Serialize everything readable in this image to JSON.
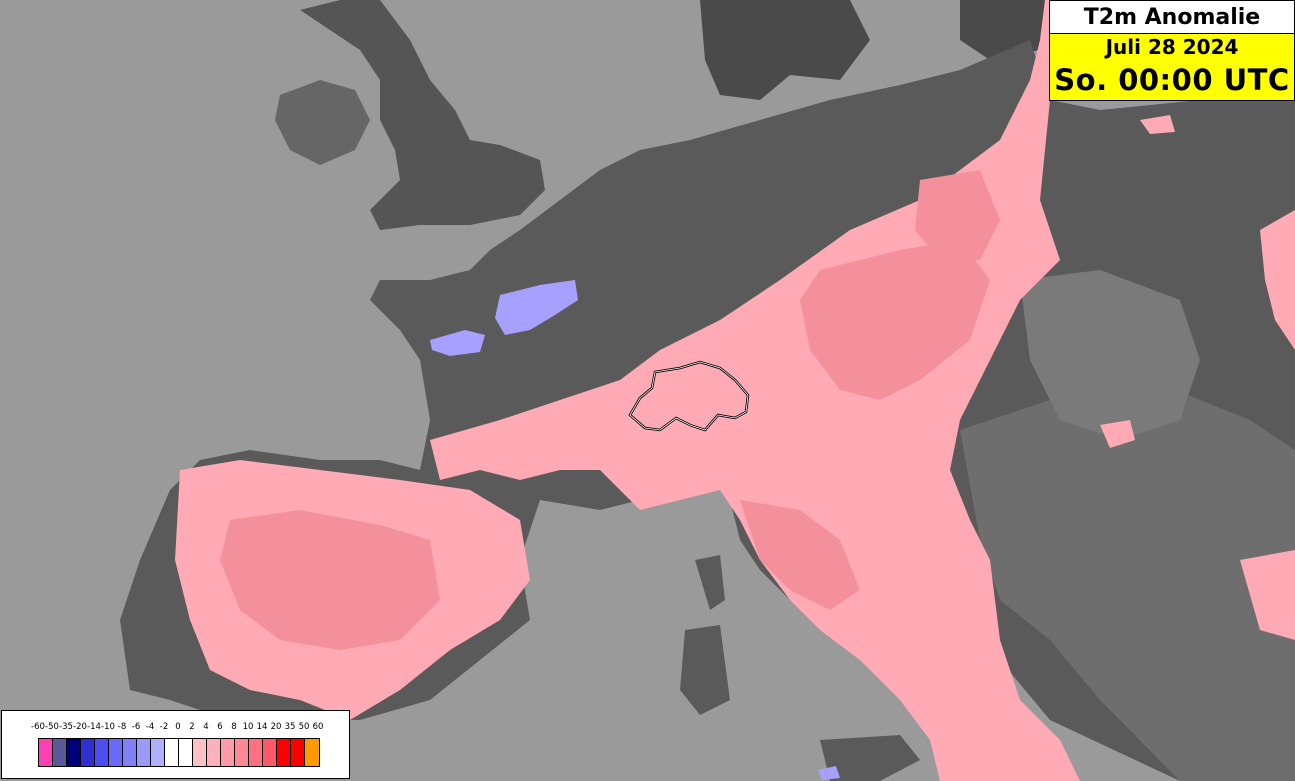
{
  "header": {
    "title": "T2m Anomalie",
    "date": "Juli 28 2024",
    "time": "So. 00:00 UTC"
  },
  "colors": {
    "sea": "#9a9a9a",
    "land_dark": "#4a4a4a",
    "land_mid": "#6a6a6a",
    "anomaly_warm_light": "#ffaab5",
    "anomaly_warm_mid": "#f4909c",
    "anomaly_cool": "#a8a0ff",
    "title_bg": "#ffff00"
  },
  "legend": {
    "labels": [
      "-60",
      "-50",
      "-35",
      "-20",
      "-14",
      "-10",
      "-8",
      "-6",
      "-4",
      "-2",
      "0",
      "2",
      "4",
      "6",
      "8",
      "10",
      "14",
      "20",
      "35",
      "50",
      "60"
    ],
    "swatches": [
      "#ff3fb4",
      "#5a5a9a",
      "#00007a",
      "#3030d0",
      "#4d4df0",
      "#6a6af8",
      "#8080f8",
      "#9a9af8",
      "#b0b0ff",
      "#ffffff",
      "#ffffff",
      "#ffc0c8",
      "#ffb0bb",
      "#ff9aa8",
      "#ff8896",
      "#ff7080",
      "#ff5868",
      "#ff0000",
      "#ff0000",
      "#ff9a00"
    ]
  },
  "map": {
    "highlighted_country": "Switzerland outline"
  }
}
